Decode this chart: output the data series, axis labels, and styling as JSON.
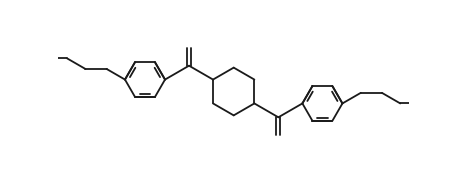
{
  "bg_color": "#ffffff",
  "line_color": "#1a1a1a",
  "line_width": 1.3,
  "figsize": [
    4.56,
    1.85
  ],
  "dpi": 100,
  "xlim": [
    0,
    9.12
  ],
  "ylim": [
    0,
    3.7
  ]
}
